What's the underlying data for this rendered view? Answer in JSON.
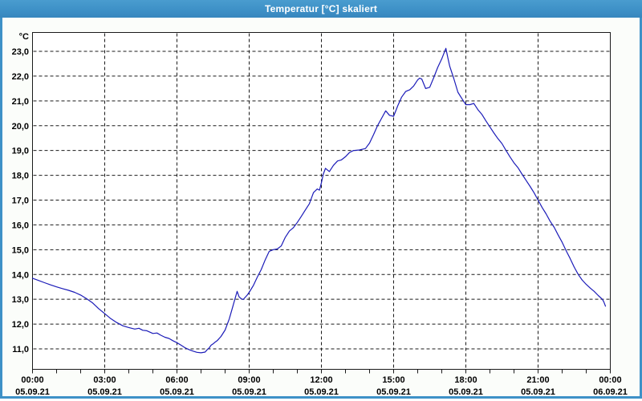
{
  "window": {
    "title": "Temperatur [°C] skaliert"
  },
  "colors": {
    "titlebar": "#3E91C7",
    "frame": "#3E91C7",
    "content_bg": "#FBFDFA",
    "plot_bg": "#FFFFFF",
    "grid": "#1A1A1A",
    "label": "#000000",
    "title_text": "#FFFFFF",
    "line": "#1B1BB8"
  },
  "chart_data": {
    "type": "line",
    "title": "Temperatur [°C] skaliert",
    "unit_label": "°C",
    "grid": "dashed",
    "legend": "none",
    "y_axis": {
      "min": 11.0,
      "max": 23.0,
      "tick_step": 1.0,
      "tick_labels_top_to_bottom": [
        "23,0",
        "22,0",
        "21,0",
        "20,0",
        "19,0",
        "18,0",
        "17,0",
        "16,0",
        "15,0",
        "14,0",
        "13,0",
        "12,0",
        "11,0"
      ]
    },
    "x_axis": {
      "span_hours": 24,
      "major_tick_hours": [
        0,
        3,
        6,
        9,
        12,
        15,
        18,
        21,
        24
      ],
      "minor_tick_every_hours": 1,
      "time_labels": [
        "00:00",
        "03:00",
        "06:00",
        "09:00",
        "12:00",
        "15:00",
        "18:00",
        "21:00",
        "00:00"
      ],
      "date_labels": [
        "05.09.21",
        "05.09.21",
        "05.09.21",
        "05.09.21",
        "05.09.21",
        "05.09.21",
        "05.09.21",
        "05.09.21",
        "06.09.21"
      ]
    },
    "series": [
      {
        "name": "Temperatur",
        "color": "#1B1BB8",
        "points_hour_degC": [
          [
            0,
            13.85
          ],
          [
            0.25,
            13.76
          ],
          [
            0.5,
            13.67
          ],
          [
            0.75,
            13.58
          ],
          [
            1,
            13.5
          ],
          [
            1.25,
            13.43
          ],
          [
            1.5,
            13.36
          ],
          [
            1.75,
            13.28
          ],
          [
            2,
            13.17
          ],
          [
            2.25,
            13.02
          ],
          [
            2.5,
            12.85
          ],
          [
            2.75,
            12.62
          ],
          [
            3,
            12.42
          ],
          [
            3.25,
            12.22
          ],
          [
            3.5,
            12.06
          ],
          [
            3.75,
            11.93
          ],
          [
            4,
            11.86
          ],
          [
            4.25,
            11.8
          ],
          [
            4.42,
            11.83
          ],
          [
            4.58,
            11.75
          ],
          [
            4.75,
            11.73
          ],
          [
            5,
            11.62
          ],
          [
            5.17,
            11.64
          ],
          [
            5.33,
            11.55
          ],
          [
            5.5,
            11.47
          ],
          [
            5.67,
            11.42
          ],
          [
            5.83,
            11.33
          ],
          [
            6,
            11.25
          ],
          [
            6.17,
            11.15
          ],
          [
            6.33,
            11.05
          ],
          [
            6.5,
            10.97
          ],
          [
            6.67,
            10.91
          ],
          [
            6.83,
            10.86
          ],
          [
            7,
            10.84
          ],
          [
            7.17,
            10.87
          ],
          [
            7.25,
            10.96
          ],
          [
            7.33,
            11.03
          ],
          [
            7.42,
            11.15
          ],
          [
            7.5,
            11.2
          ],
          [
            7.58,
            11.27
          ],
          [
            7.67,
            11.33
          ],
          [
            7.83,
            11.5
          ],
          [
            8,
            11.76
          ],
          [
            8.17,
            12.2
          ],
          [
            8.33,
            12.74
          ],
          [
            8.42,
            13.05
          ],
          [
            8.5,
            13.32
          ],
          [
            8.58,
            13.1
          ],
          [
            8.67,
            13.02
          ],
          [
            8.75,
            12.99
          ],
          [
            8.92,
            13.17
          ],
          [
            9,
            13.28
          ],
          [
            9.17,
            13.55
          ],
          [
            9.33,
            13.88
          ],
          [
            9.5,
            14.2
          ],
          [
            9.67,
            14.6
          ],
          [
            9.83,
            14.93
          ],
          [
            10,
            15.0
          ],
          [
            10.17,
            15.03
          ],
          [
            10.33,
            15.15
          ],
          [
            10.5,
            15.5
          ],
          [
            10.67,
            15.75
          ],
          [
            10.83,
            15.88
          ],
          [
            11,
            16.1
          ],
          [
            11.17,
            16.35
          ],
          [
            11.33,
            16.6
          ],
          [
            11.5,
            16.85
          ],
          [
            11.67,
            17.3
          ],
          [
            11.83,
            17.45
          ],
          [
            11.92,
            17.4
          ],
          [
            12,
            17.7
          ],
          [
            12.08,
            18.05
          ],
          [
            12.17,
            18.28
          ],
          [
            12.33,
            18.15
          ],
          [
            12.5,
            18.4
          ],
          [
            12.67,
            18.58
          ],
          [
            12.83,
            18.62
          ],
          [
            13,
            18.75
          ],
          [
            13.17,
            18.92
          ],
          [
            13.33,
            19.0
          ],
          [
            13.58,
            19.02
          ],
          [
            13.83,
            19.08
          ],
          [
            14,
            19.3
          ],
          [
            14.17,
            19.65
          ],
          [
            14.33,
            20.0
          ],
          [
            14.5,
            20.3
          ],
          [
            14.67,
            20.6
          ],
          [
            14.83,
            20.42
          ],
          [
            15,
            20.38
          ],
          [
            15.17,
            20.8
          ],
          [
            15.33,
            21.15
          ],
          [
            15.5,
            21.38
          ],
          [
            15.67,
            21.45
          ],
          [
            15.83,
            21.6
          ],
          [
            16,
            21.85
          ],
          [
            16.08,
            21.92
          ],
          [
            16.17,
            21.88
          ],
          [
            16.33,
            21.5
          ],
          [
            16.5,
            21.55
          ],
          [
            16.67,
            21.95
          ],
          [
            16.83,
            22.35
          ],
          [
            17,
            22.7
          ],
          [
            17.17,
            23.12
          ],
          [
            17.25,
            22.75
          ],
          [
            17.33,
            22.4
          ],
          [
            17.5,
            21.9
          ],
          [
            17.67,
            21.35
          ],
          [
            17.83,
            21.1
          ],
          [
            18,
            20.85
          ],
          [
            18.17,
            20.85
          ],
          [
            18.33,
            20.9
          ],
          [
            18.5,
            20.65
          ],
          [
            18.67,
            20.45
          ],
          [
            18.83,
            20.2
          ],
          [
            19,
            19.95
          ],
          [
            19.17,
            19.7
          ],
          [
            19.33,
            19.48
          ],
          [
            19.5,
            19.28
          ],
          [
            19.67,
            19.0
          ],
          [
            19.83,
            18.75
          ],
          [
            20,
            18.5
          ],
          [
            20.17,
            18.3
          ],
          [
            20.33,
            18.05
          ],
          [
            20.5,
            17.8
          ],
          [
            20.67,
            17.55
          ],
          [
            20.83,
            17.3
          ],
          [
            21,
            17.0
          ],
          [
            21.17,
            16.7
          ],
          [
            21.33,
            16.45
          ],
          [
            21.5,
            16.15
          ],
          [
            21.67,
            15.9
          ],
          [
            21.83,
            15.6
          ],
          [
            22,
            15.3
          ],
          [
            22.17,
            14.95
          ],
          [
            22.33,
            14.65
          ],
          [
            22.5,
            14.3
          ],
          [
            22.67,
            14.0
          ],
          [
            22.83,
            13.78
          ],
          [
            23,
            13.6
          ],
          [
            23.17,
            13.45
          ],
          [
            23.33,
            13.32
          ],
          [
            23.5,
            13.15
          ],
          [
            23.67,
            13.0
          ],
          [
            23.73,
            12.9
          ],
          [
            23.8,
            12.72
          ]
        ]
      }
    ]
  }
}
